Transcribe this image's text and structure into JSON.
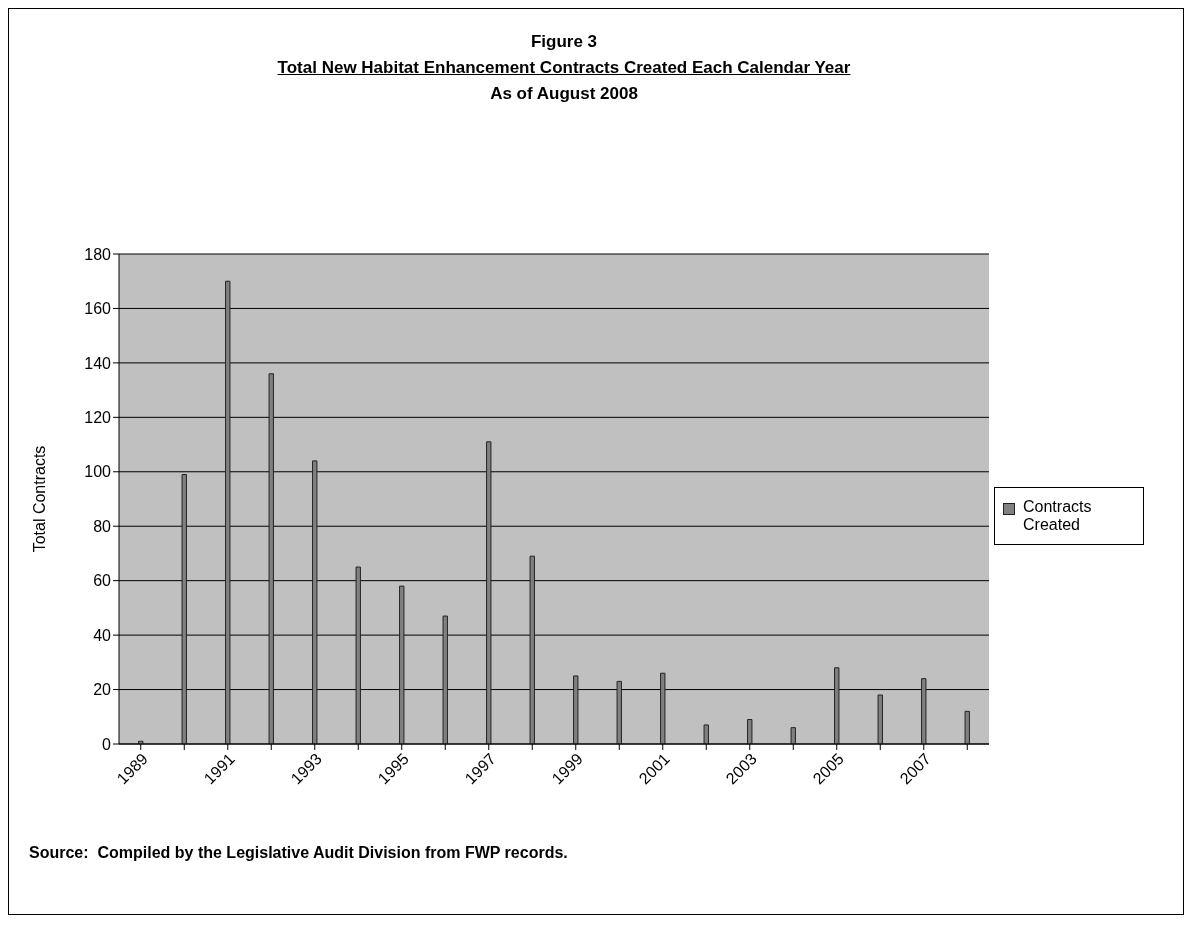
{
  "chart_data": {
    "type": "bar",
    "title": "Figure 3",
    "subtitle": "Total New Habitat Enhancement Contracts Created Each Calendar Year",
    "annotations": [
      "As of August 2008",
      "Source:  Compiled by the Legislative Audit Division from FWP records."
    ],
    "ylabel": "Total Contracts",
    "categories": [
      "1989",
      null,
      "1991",
      null,
      "1993",
      null,
      "1995",
      null,
      "1997",
      null,
      "1999",
      null,
      "2001",
      null,
      "2003",
      null,
      "2005",
      null,
      "2007",
      null
    ],
    "series": [
      {
        "name": "Contracts Created",
        "color": "#808080",
        "values": [
          1,
          99,
          170,
          136,
          104,
          65,
          58,
          47,
          111,
          69,
          25,
          23,
          26,
          7,
          9,
          6,
          28,
          18,
          24,
          12
        ]
      }
    ],
    "ylim": [
      0,
      180
    ],
    "yticks": [
      0,
      20,
      40,
      60,
      80,
      100,
      120,
      140,
      160,
      180
    ],
    "grid": "y",
    "legend": "right"
  }
}
